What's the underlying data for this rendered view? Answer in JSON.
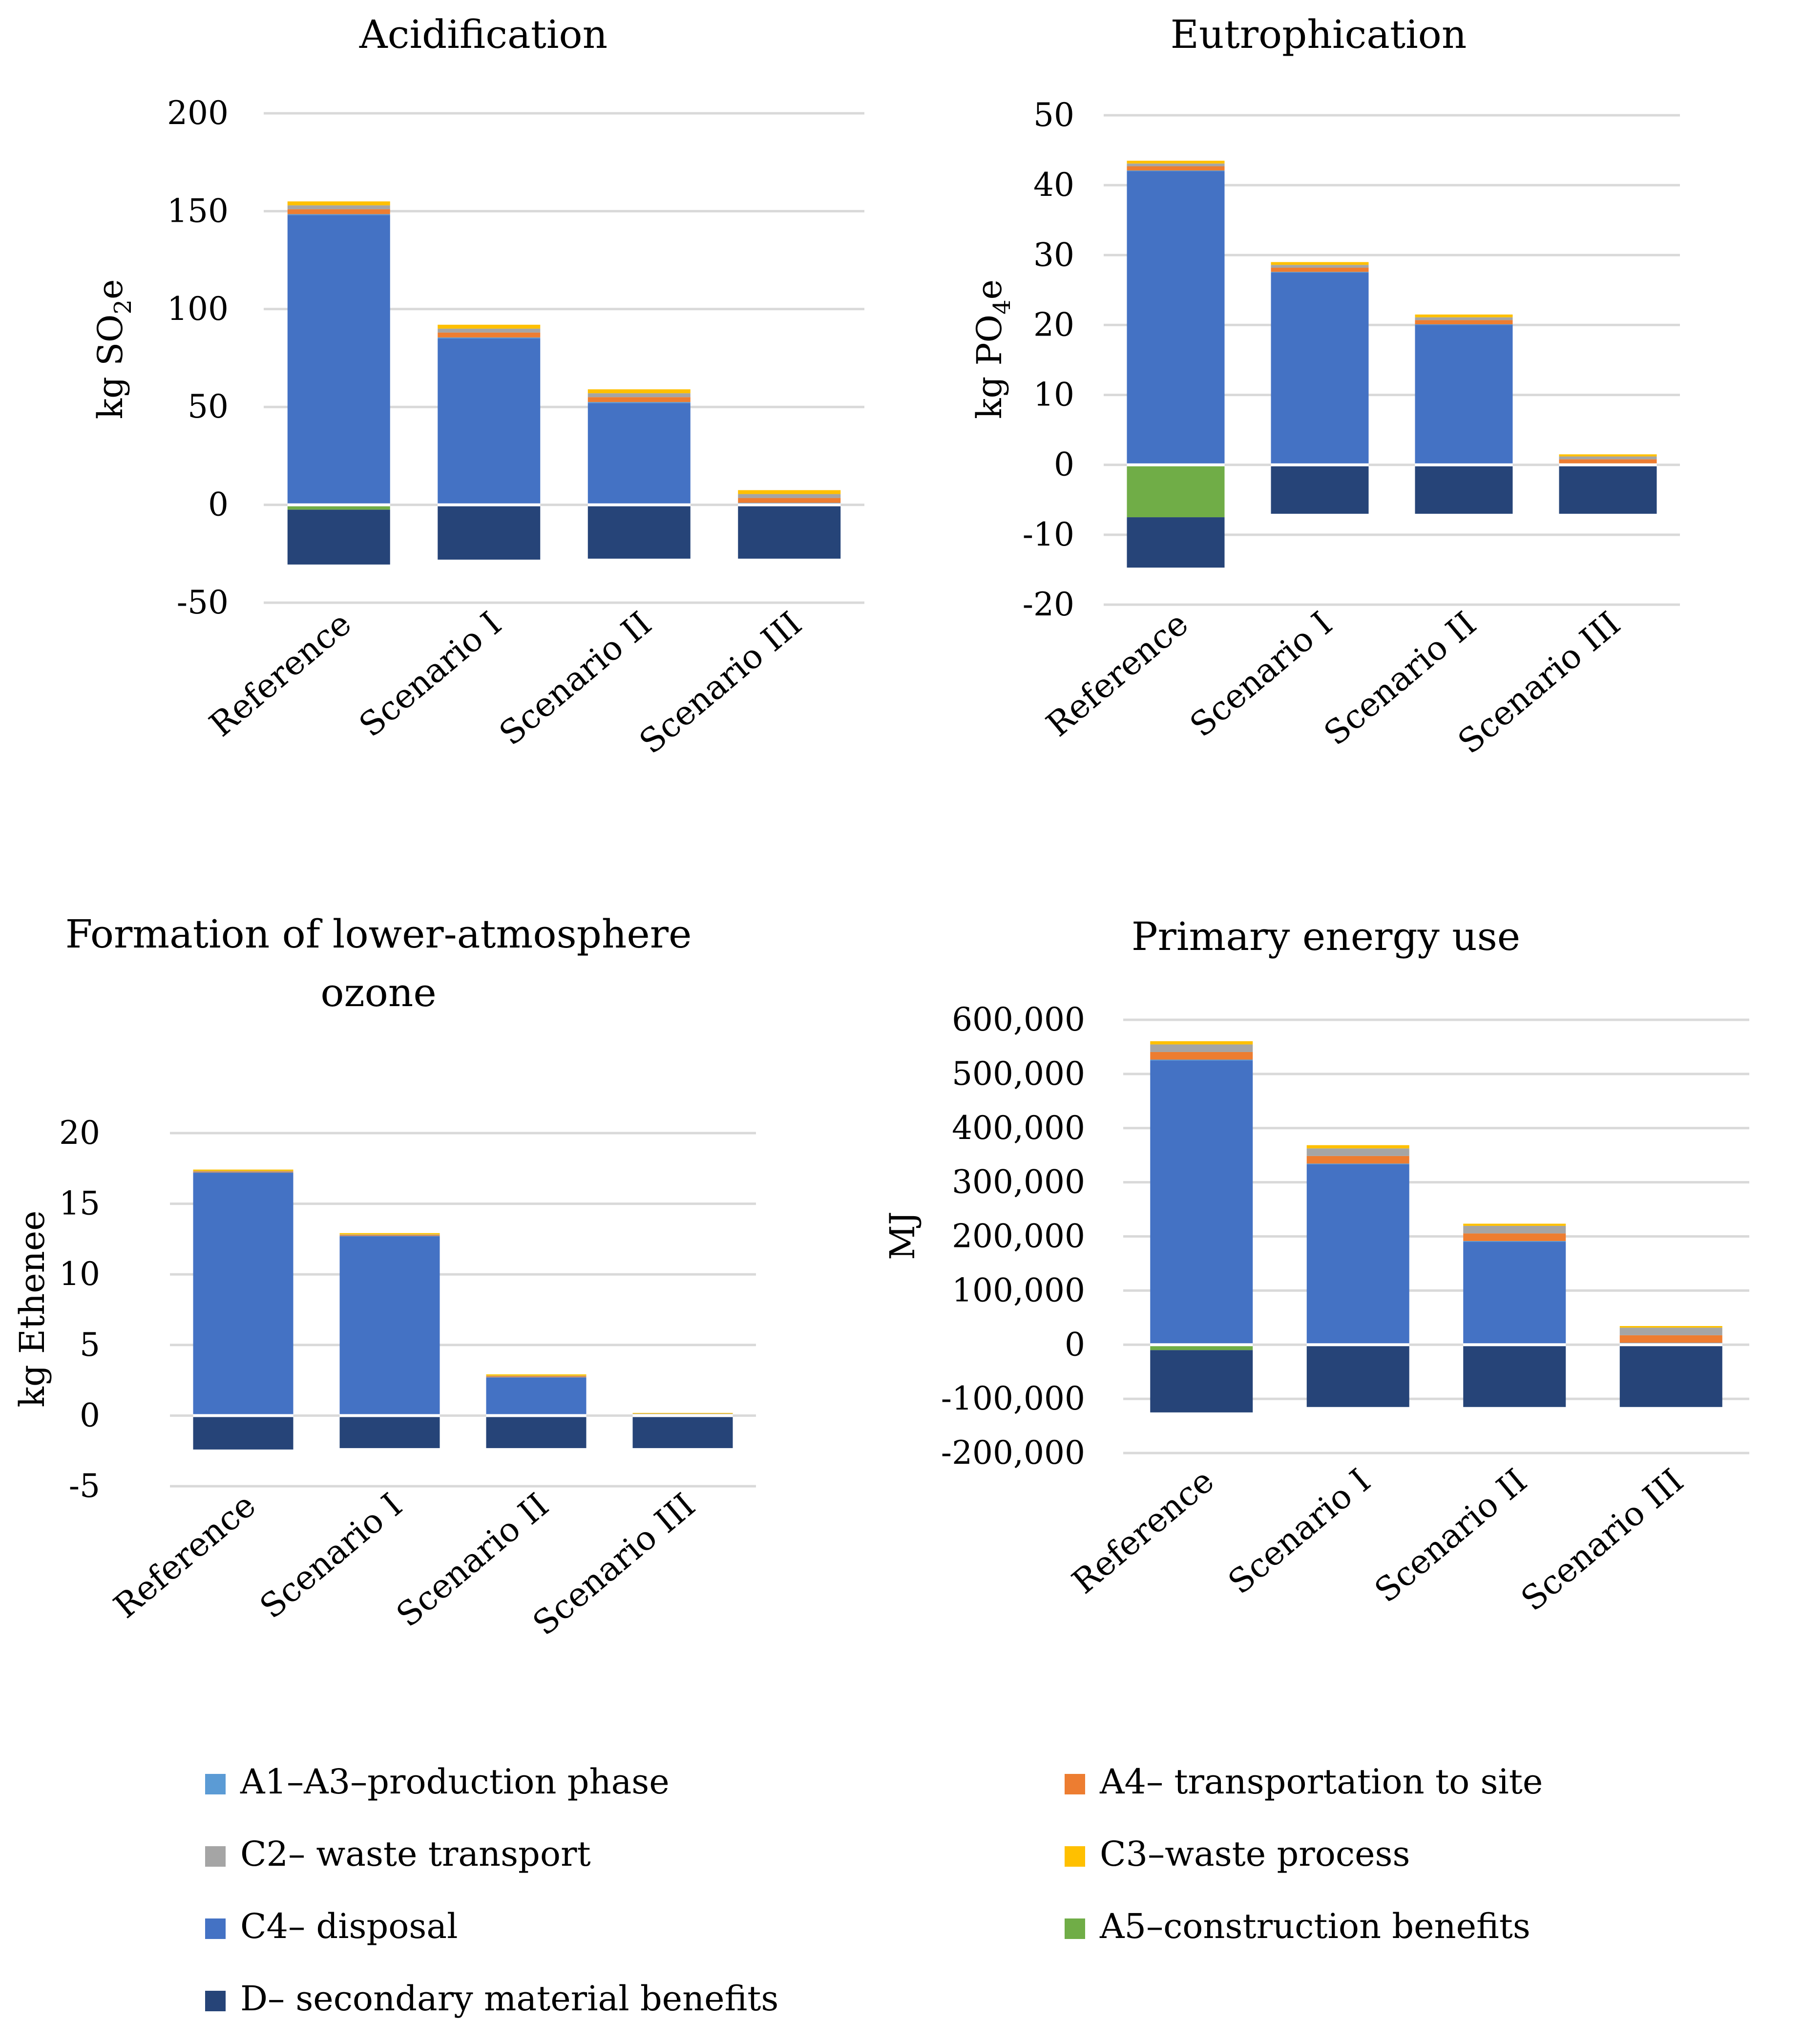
{
  "figure_label": "LCA impact categories by scenario",
  "chart_data": [
    {
      "type": "bar",
      "stacked": true,
      "title": "Acidification",
      "title_lines": [
        "Acidification"
      ],
      "ylabel": "kg SO2e",
      "ylabel_main": "kg SO",
      "ylabel_sub": "2",
      "ylabel_tail": "e",
      "ylim": [
        -50,
        200
      ],
      "yticks": [
        -50,
        0,
        50,
        100,
        150,
        200
      ],
      "ytick_labels": [
        "-50",
        "0",
        "50",
        "100",
        "150",
        "200"
      ],
      "grid": true,
      "categories": [
        "Reference",
        "Scenario I",
        "Scenario II",
        "Scenario III"
      ],
      "series": [
        {
          "name": "A1–A3–production phase",
          "values": [
            0.5,
            0.5,
            0.5,
            0.5
          ]
        },
        {
          "name": "A4– transportation to site",
          "values": [
            2.5,
            2.5,
            2.5,
            2.5
          ]
        },
        {
          "name": "C2– waste transport",
          "values": [
            2.0,
            2.0,
            2.0,
            2.0
          ]
        },
        {
          "name": "C3–waste process",
          "values": [
            2.0,
            2.0,
            2.0,
            2.0
          ]
        },
        {
          "name": "C4– disposal",
          "values": [
            148,
            85,
            52,
            0.5
          ]
        },
        {
          "name": "A5–construction benefits",
          "values": [
            -2.5,
            0,
            0,
            0
          ]
        },
        {
          "name": "D– secondary material benefits",
          "values": [
            -28,
            -28,
            -27.5,
            -27.5
          ]
        }
      ]
    },
    {
      "type": "bar",
      "stacked": true,
      "title": "Eutrophication",
      "title_lines": [
        "Eutrophication"
      ],
      "ylabel": "kg PO4e",
      "ylabel_main": "kg PO",
      "ylabel_sub": "4",
      "ylabel_tail": "e",
      "ylim": [
        -20,
        50
      ],
      "yticks": [
        -20,
        -10,
        0,
        10,
        20,
        30,
        40,
        50
      ],
      "ytick_labels": [
        "-20",
        "-10",
        "0",
        "10",
        "20",
        "30",
        "40",
        "50"
      ],
      "grid": true,
      "categories": [
        "Reference",
        "Scenario I",
        "Scenario II",
        "Scenario III"
      ],
      "series": [
        {
          "name": "A1–A3–production phase",
          "values": [
            0.1,
            0.1,
            0.1,
            0.1
          ]
        },
        {
          "name": "A4– transportation to site",
          "values": [
            0.6,
            0.6,
            0.6,
            0.6
          ]
        },
        {
          "name": "C2– waste transport",
          "values": [
            0.4,
            0.4,
            0.4,
            0.4
          ]
        },
        {
          "name": "C3–waste process",
          "values": [
            0.4,
            0.4,
            0.4,
            0.3
          ]
        },
        {
          "name": "C4– disposal",
          "values": [
            42,
            27.5,
            20,
            0.1
          ]
        },
        {
          "name": "A5–construction benefits",
          "values": [
            -7.5,
            0,
            0,
            0
          ]
        },
        {
          "name": "D– secondary material benefits",
          "values": [
            -7.2,
            -7,
            -7,
            -7
          ]
        }
      ]
    },
    {
      "type": "bar",
      "stacked": true,
      "title": "Formation of lower-atmosphere ozone",
      "title_lines": [
        "Formation of  lower-atmosphere",
        "ozone"
      ],
      "ylabel": "kg Ethenee",
      "ylim": [
        -5,
        20
      ],
      "yticks": [
        -5,
        0,
        5,
        10,
        15,
        20
      ],
      "ytick_labels": [
        "-5",
        "0",
        "5",
        "10",
        "15",
        "20"
      ],
      "grid": true,
      "categories": [
        "Reference",
        "Scenario I",
        "Scenario II",
        "Scenario III"
      ],
      "series": [
        {
          "name": "A1–A3–production phase",
          "values": [
            0.02,
            0.02,
            0.02,
            0.02
          ]
        },
        {
          "name": "A4– transportation to site",
          "values": [
            0.06,
            0.06,
            0.06,
            0.06
          ]
        },
        {
          "name": "C2– waste transport",
          "values": [
            0.04,
            0.04,
            0.04,
            0.04
          ]
        },
        {
          "name": "C3–waste process",
          "values": [
            0.1,
            0.1,
            0.1,
            0.05
          ]
        },
        {
          "name": "C4– disposal",
          "values": [
            17.2,
            12.7,
            2.7,
            0.02
          ]
        },
        {
          "name": "A5–construction benefits",
          "values": [
            0,
            0,
            0,
            0
          ]
        },
        {
          "name": "D– secondary material benefits",
          "values": [
            -2.4,
            -2.3,
            -2.3,
            -2.3
          ]
        }
      ]
    },
    {
      "type": "bar",
      "stacked": true,
      "title": "Primary energy use",
      "title_lines": [
        "Primary energy use"
      ],
      "ylabel": "MJ",
      "ylim": [
        -200000,
        600000
      ],
      "yticks": [
        -200000,
        -100000,
        0,
        100000,
        200000,
        300000,
        400000,
        500000,
        600000
      ],
      "ytick_labels": [
        "-200,000",
        "-100,000",
        "0",
        "100,000",
        "200,000",
        "300,000",
        "400,000",
        "500,000",
        "600,000"
      ],
      "grid": true,
      "categories": [
        "Reference",
        "Scenario I",
        "Scenario II",
        "Scenario III"
      ],
      "series": [
        {
          "name": "A1–A3–production phase",
          "values": [
            1500,
            1500,
            1500,
            1500
          ]
        },
        {
          "name": "A4– transportation to site",
          "values": [
            14000,
            14000,
            14000,
            14000
          ]
        },
        {
          "name": "C2– waste transport",
          "values": [
            14000,
            14000,
            14000,
            14000
          ]
        },
        {
          "name": "C3–waste process",
          "values": [
            6000,
            6000,
            4000,
            3000
          ]
        },
        {
          "name": "C4– disposal",
          "values": [
            525000,
            333000,
            190000,
            2000
          ]
        },
        {
          "name": "A5–construction benefits",
          "values": [
            -10000,
            0,
            0,
            0
          ]
        },
        {
          "name": "D– secondary material benefits",
          "values": [
            -115000,
            -115000,
            -115000,
            -115000
          ]
        }
      ]
    }
  ],
  "legend": {
    "placement": "bottom",
    "items": [
      {
        "label": "A1–A3–production phase",
        "color": "#5B9BD5"
      },
      {
        "label": "A4– transportation to site",
        "color": "#ED7D31"
      },
      {
        "label": "C2– waste transport",
        "color": "#A5A5A5"
      },
      {
        "label": "C3–waste process",
        "color": "#FFC000"
      },
      {
        "label": "C4– disposal",
        "color": "#4472C4"
      },
      {
        "label": "A5–construction benefits",
        "color": "#70AD47"
      },
      {
        "label": "D– secondary material benefits",
        "color": "#264478"
      }
    ]
  }
}
